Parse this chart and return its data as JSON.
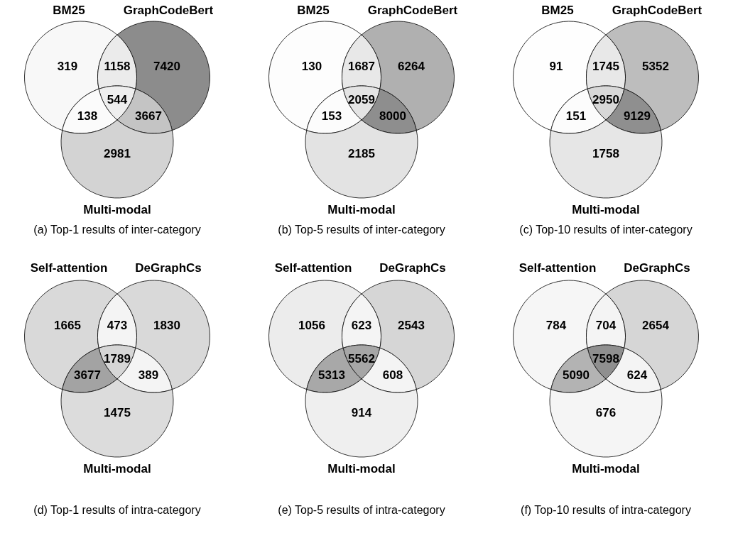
{
  "chart_data": [
    {
      "type": "other",
      "title": "(a) Top-1 results of inter-category",
      "annotations": [
        "BM25",
        "GraphCodeBert",
        "Multi-modal"
      ],
      "categories": [
        null,
        null,
        null,
        null,
        null,
        null,
        null
      ],
      "values": [
        319,
        1158,
        7420,
        544,
        138,
        3667,
        2981
      ],
      "colors": [
        "#f8f8f8",
        "#ebebeb",
        "#8c8c8c",
        "#eeeeee",
        "#fbfbfb",
        "#c4c4c4",
        "#d3d3d3"
      ],
      "data_labels": true
    },
    {
      "type": "other",
      "title": "(b) Top-5 results of inter-category",
      "annotations": [
        "BM25",
        "GraphCodeBert",
        "Multi-modal"
      ],
      "categories": [
        null,
        null,
        null,
        null,
        null,
        null,
        null
      ],
      "values": [
        130,
        1687,
        6264,
        2059,
        153,
        8000,
        2185
      ],
      "colors": [
        "#fdfdfd",
        "#e8e8e8",
        "#b0b0b0",
        "#e4e4e4",
        "#fcfcfc",
        "#8e8e8e",
        "#e3e3e3"
      ],
      "data_labels": true
    },
    {
      "type": "other",
      "title": "(c) Top-10 results of inter-category",
      "annotations": [
        "BM25",
        "GraphCodeBert",
        "Multi-modal"
      ],
      "categories": [
        null,
        null,
        null,
        null,
        null,
        null,
        null
      ],
      "values": [
        91,
        1745,
        5352,
        2950,
        151,
        9129,
        1758
      ],
      "colors": [
        "#fefefe",
        "#e8e8e8",
        "#bdbdbd",
        "#d8d8d8",
        "#fcfcfc",
        "#8f8f8f",
        "#e6e6e6"
      ],
      "data_labels": true
    },
    {
      "type": "other",
      "title": "(d) Top-1 results of intra-category",
      "annotations": [
        "Self-attention",
        "DeGraphCs",
        "Multi-modal"
      ],
      "categories": [
        null,
        null,
        null,
        null,
        null,
        null,
        null
      ],
      "values": [
        1665,
        473,
        1830,
        1789,
        3677,
        389,
        1475
      ],
      "colors": [
        "#d9d9d9",
        "#f4f4f4",
        "#d9d9d9",
        "#d6d6d6",
        "#a3a3a3",
        "#f4f4f4",
        "#dcdcdc"
      ],
      "data_labels": true
    },
    {
      "type": "other",
      "title": "(e) Top-5 results of intra-category",
      "annotations": [
        "Self-attention",
        "DeGraphCs",
        "Multi-modal"
      ],
      "categories": [
        null,
        null,
        null,
        null,
        null,
        null,
        null
      ],
      "values": [
        1056,
        623,
        2543,
        5562,
        5313,
        608,
        914
      ],
      "colors": [
        "#ececec",
        "#f4f4f4",
        "#d6d6d6",
        "#a6a6a6",
        "#a8a8a8",
        "#f4f4f4",
        "#efefef"
      ],
      "data_labels": true
    },
    {
      "type": "other",
      "title": "(f) Top-10 results of intra-category",
      "annotations": [
        "Self-attention",
        "DeGraphCs",
        "Multi-modal"
      ],
      "categories": [
        null,
        null,
        null,
        null,
        null,
        null,
        null
      ],
      "values": [
        784,
        704,
        2654,
        7598,
        5090,
        624,
        676
      ],
      "colors": [
        "#f6f6f6",
        "#f4f4f4",
        "#d6d6d6",
        "#8f8f8f",
        "#b3b3b3",
        "#f4f4f4",
        "#f5f5f5"
      ],
      "data_labels": true
    }
  ]
}
